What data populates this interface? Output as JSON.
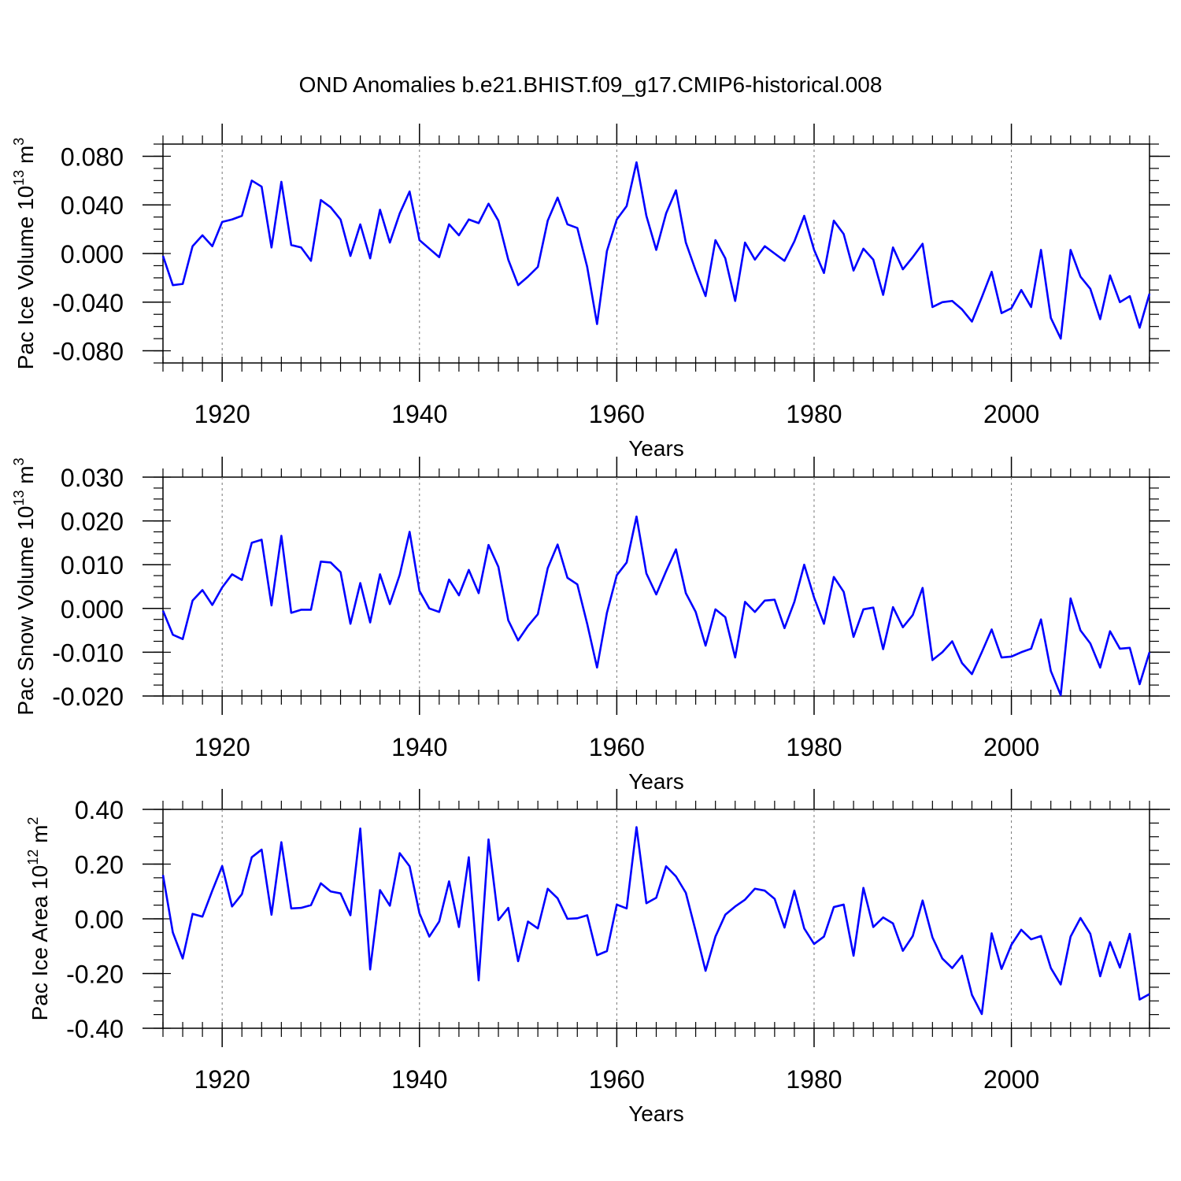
{
  "title": "OND Anomalies b.e21.BHIST.f09_g17.CMIP6-historical.008",
  "chart_data": [
    {
      "type": "line",
      "ylabel": "Pac Ice Volume 10^13 m^3",
      "ylabel_parts": {
        "base": "Pac Ice Volume 10",
        "sup1": "13",
        "mid": " m",
        "sup2": "3"
      },
      "xlabel": "Years",
      "xlim": [
        1914,
        2014
      ],
      "ylim": [
        -0.09,
        0.09
      ],
      "xticks": [
        "1920",
        "1940",
        "1960",
        "1980",
        "2000"
      ],
      "yticks": [
        "0.080",
        "0.040",
        "0.000",
        "-0.040",
        "-0.080"
      ],
      "ytick_values": [
        0.08,
        0.04,
        0.0,
        -0.04,
        -0.08
      ],
      "color": "#0000ff",
      "x_start": 1914,
      "values": [
        -0.002,
        -0.026,
        -0.025,
        0.006,
        0.015,
        0.006,
        0.026,
        0.028,
        0.031,
        0.06,
        0.055,
        0.005,
        0.059,
        0.007,
        0.005,
        -0.006,
        0.044,
        0.038,
        0.028,
        -0.002,
        0.024,
        -0.004,
        0.036,
        0.009,
        0.033,
        0.051,
        0.011,
        0.004,
        -0.003,
        0.024,
        0.015,
        0.028,
        0.025,
        0.041,
        0.027,
        -0.005,
        -0.026,
        -0.019,
        -0.011,
        0.027,
        0.046,
        0.024,
        0.021,
        -0.011,
        -0.058,
        0.002,
        0.028,
        0.039,
        0.075,
        0.031,
        0.003,
        0.033,
        0.052,
        0.009,
        -0.014,
        -0.035,
        0.011,
        -0.004,
        -0.039,
        0.009,
        -0.005,
        0.006,
        0.0,
        -0.006,
        0.01,
        0.031,
        0.003,
        -0.016,
        0.027,
        0.016,
        -0.014,
        0.004,
        -0.005,
        -0.034,
        0.005,
        -0.013,
        -0.003,
        0.008,
        -0.044,
        -0.04,
        -0.039,
        -0.046,
        -0.056,
        -0.036,
        -0.015,
        -0.049,
        -0.045,
        -0.03,
        -0.044,
        0.003,
        -0.053,
        -0.07,
        0.003,
        -0.019,
        -0.029,
        -0.054,
        -0.018,
        -0.04,
        -0.035,
        -0.061,
        -0.033
      ]
    },
    {
      "type": "line",
      "ylabel": "Pac Snow Volume 10^13 m^3",
      "ylabel_parts": {
        "base": "Pac Snow Volume 10",
        "sup1": "13",
        "mid": " m",
        "sup2": "3"
      },
      "xlabel": "Years",
      "xlim": [
        1914,
        2014
      ],
      "ylim": [
        -0.02,
        0.03
      ],
      "xticks": [
        "1920",
        "1940",
        "1960",
        "1980",
        "2000"
      ],
      "yticks": [
        "0.030",
        "0.020",
        "0.010",
        "0.000",
        "-0.010",
        "-0.020"
      ],
      "ytick_values": [
        0.03,
        0.02,
        0.01,
        0.0,
        -0.01,
        -0.02
      ],
      "color": "#0000ff",
      "x_start": 1914,
      "values": [
        -0.0005,
        -0.006,
        -0.007,
        0.0018,
        0.0042,
        0.0008,
        0.0048,
        0.0078,
        0.0065,
        0.015,
        0.0157,
        0.0007,
        0.0166,
        -0.001,
        -0.0003,
        -0.0003,
        0.0107,
        0.0105,
        0.0083,
        -0.0035,
        0.0058,
        -0.0032,
        0.0078,
        0.001,
        0.0077,
        0.0175,
        0.004,
        0.0,
        -0.0008,
        0.0066,
        0.003,
        0.0088,
        0.0035,
        0.0145,
        0.0095,
        -0.0027,
        -0.0073,
        -0.004,
        -0.0013,
        0.0092,
        0.0146,
        0.007,
        0.0055,
        -0.0035,
        -0.0135,
        -0.001,
        0.0076,
        0.0105,
        0.021,
        0.008,
        0.0032,
        0.0085,
        0.0135,
        0.0035,
        -0.0008,
        -0.0085,
        -0.0002,
        -0.002,
        -0.0112,
        0.0015,
        -0.0008,
        0.0018,
        0.002,
        -0.0045,
        0.0015,
        0.01,
        0.0025,
        -0.0035,
        0.0072,
        0.0038,
        -0.0065,
        -0.0002,
        0.0002,
        -0.0093,
        0.0003,
        -0.0043,
        -0.0015,
        0.0047,
        -0.0118,
        -0.01,
        -0.0075,
        -0.0125,
        -0.015,
        -0.01,
        -0.0048,
        -0.0112,
        -0.011,
        -0.01,
        -0.0092,
        -0.0025,
        -0.0143,
        -0.0198,
        0.0023,
        -0.005,
        -0.008,
        -0.0135,
        -0.0052,
        -0.0092,
        -0.009,
        -0.0173,
        -0.01
      ]
    },
    {
      "type": "line",
      "ylabel": "Pac Ice Area 10^12 m^2",
      "ylabel_parts": {
        "base": "Pac Ice Area 10",
        "sup1": "12",
        "mid": " m",
        "sup2": "2"
      },
      "xlabel": "Years",
      "xlim": [
        1914,
        2014
      ],
      "ylim": [
        -0.4,
        0.4
      ],
      "xticks": [
        "1920",
        "1940",
        "1960",
        "1980",
        "2000"
      ],
      "yticks": [
        "0.40",
        "0.20",
        "0.00",
        "-0.20",
        "-0.40"
      ],
      "ytick_values": [
        0.4,
        0.2,
        0.0,
        -0.2,
        -0.4
      ],
      "color": "#0000ff",
      "x_start": 1914,
      "values": [
        0.16,
        -0.05,
        -0.145,
        0.018,
        0.008,
        0.103,
        0.193,
        0.045,
        0.09,
        0.225,
        0.253,
        0.015,
        0.28,
        0.038,
        0.04,
        0.05,
        0.13,
        0.1,
        0.093,
        0.013,
        0.33,
        -0.185,
        0.105,
        0.048,
        0.24,
        0.192,
        0.02,
        -0.065,
        -0.01,
        0.137,
        -0.03,
        0.225,
        -0.225,
        0.29,
        -0.005,
        0.04,
        -0.155,
        -0.01,
        -0.035,
        0.11,
        0.075,
        0.0,
        0.002,
        0.013,
        -0.133,
        -0.118,
        0.052,
        0.038,
        0.335,
        0.057,
        0.077,
        0.192,
        0.155,
        0.095,
        -0.045,
        -0.19,
        -0.065,
        0.015,
        0.045,
        0.07,
        0.11,
        0.103,
        0.073,
        -0.032,
        0.103,
        -0.035,
        -0.092,
        -0.065,
        0.043,
        0.052,
        -0.135,
        0.113,
        -0.03,
        0.005,
        -0.017,
        -0.117,
        -0.063,
        0.067,
        -0.068,
        -0.145,
        -0.18,
        -0.135,
        -0.278,
        -0.348,
        -0.053,
        -0.183,
        -0.095,
        -0.04,
        -0.075,
        -0.063,
        -0.18,
        -0.24,
        -0.065,
        0.003,
        -0.055,
        -0.21,
        -0.085,
        -0.178,
        -0.055,
        -0.295,
        -0.275
      ]
    }
  ]
}
